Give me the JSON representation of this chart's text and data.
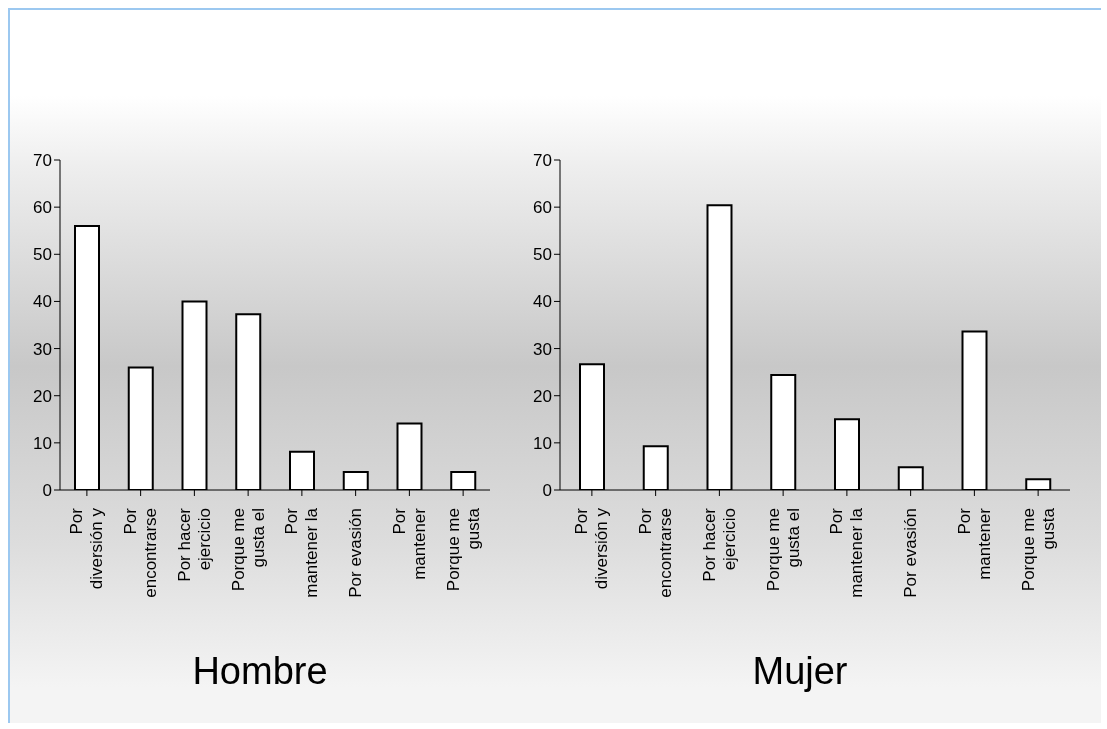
{
  "chart_data": [
    {
      "type": "bar",
      "title": "Hombre",
      "categories": [
        "Por diversión y",
        "Por encontrarse",
        "Por hacer ejercicio",
        "Porque me gusta el",
        "Por mantener la",
        "Por evasión",
        "Por mantener",
        "Porque me gusta"
      ],
      "values": [
        56,
        26,
        40,
        37.3,
        8.1,
        3.8,
        14.1,
        3.8
      ],
      "color": "#ffffff",
      "ylim": [
        0,
        70
      ],
      "yticks": [
        0,
        10,
        20,
        30,
        40,
        50,
        60,
        70
      ],
      "grid": false,
      "legend": false
    },
    {
      "type": "bar",
      "title": "Mujer",
      "categories": [
        "Por diversión y",
        "Por encontrarse",
        "Por hacer ejercicio",
        "Porque me gusta el",
        "Por mantener la",
        "Por evasión",
        "Por mantener",
        "Porque me gusta"
      ],
      "values": [
        26.7,
        9.3,
        60.4,
        24.4,
        15,
        4.8,
        33.6,
        2.3
      ],
      "color": "#ffffff",
      "ylim": [
        0,
        70
      ],
      "yticks": [
        0,
        10,
        20,
        30,
        40,
        50,
        60,
        70
      ],
      "grid": false,
      "legend": false
    }
  ]
}
